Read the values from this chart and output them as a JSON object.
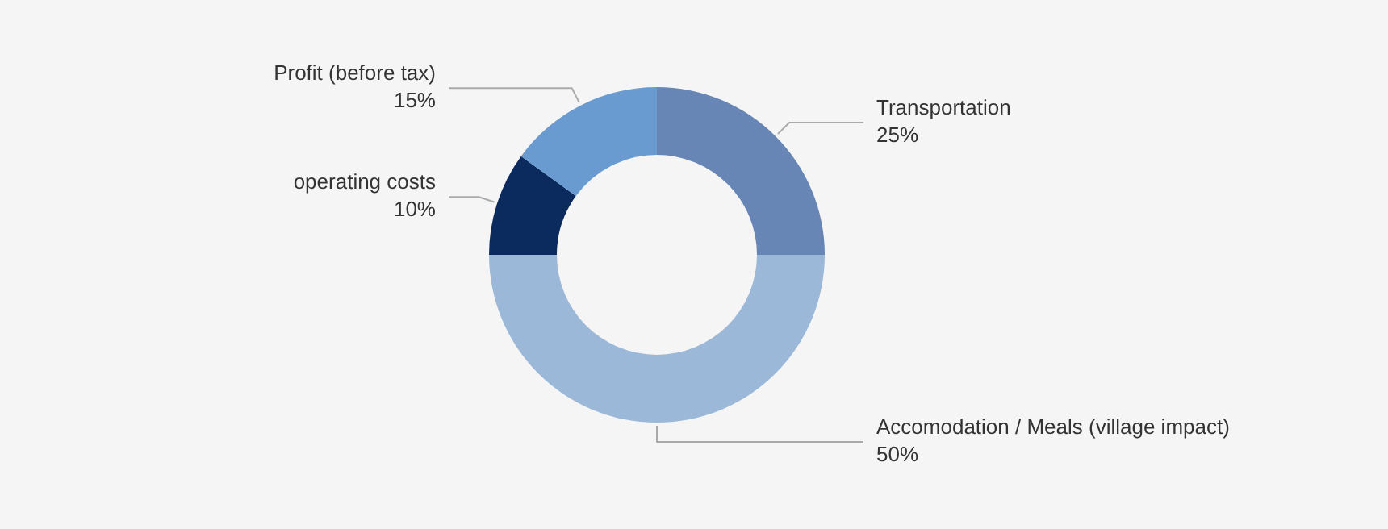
{
  "chart_data": {
    "type": "donut",
    "categories": [
      "Transportation",
      "Accomodation / Meals (village impact)",
      "operating costs",
      "Profit (before tax)"
    ],
    "values": [
      25,
      50,
      10,
      15
    ],
    "value_labels": [
      "25%",
      "50%",
      "10%",
      "15%"
    ],
    "colors": [
      "#6786b5",
      "#9cb8d8",
      "#0b2a5e",
      "#6a9bd0"
    ]
  }
}
